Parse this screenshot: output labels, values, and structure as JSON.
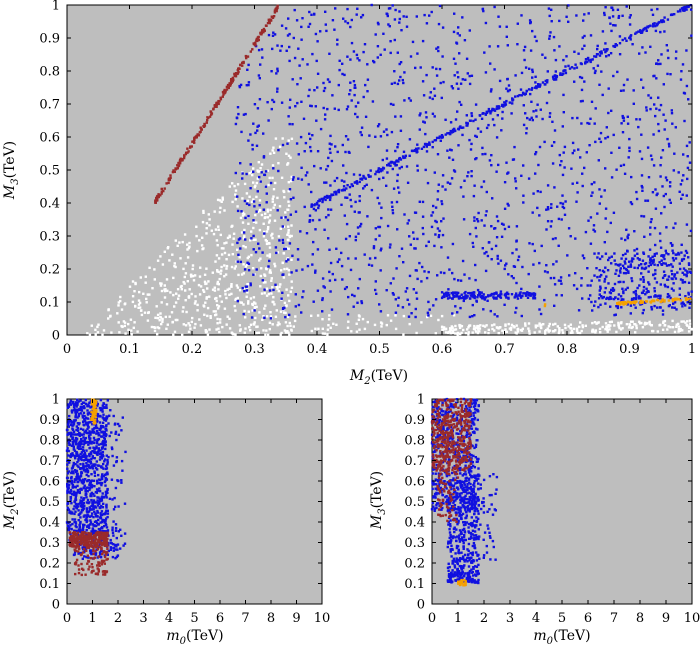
{
  "colors": {
    "background": "#bebebe",
    "white_points": "#ffffff",
    "blue_points": "#1010e0",
    "red_points": "#9a2a2a",
    "orange_points": "#f5a000"
  },
  "chart_data": [
    {
      "type": "scatter",
      "title": "",
      "xlabel": "M2(TeV)",
      "ylabel": "M3(TeV)",
      "xlabel_parts": [
        "M",
        "2",
        "(TeV)"
      ],
      "ylabel_parts": [
        "M",
        "3",
        "(TeV)"
      ],
      "xlim": [
        0,
        1
      ],
      "ylim": [
        0,
        1
      ],
      "xticks": [
        "0",
        "0.1",
        "0.2",
        "0.3",
        "0.4",
        "0.5",
        "0.6",
        "0.7",
        "0.8",
        "0.9",
        "1"
      ],
      "yticks": [
        "0",
        "0.1",
        "0.2",
        "0.3",
        "0.4",
        "0.5",
        "0.6",
        "0.7",
        "0.8",
        "0.9",
        "1"
      ],
      "series": [
        {
          "name": "white",
          "color": "#ffffff",
          "regions": [
            {
              "shape": "tri",
              "x0": 0.02,
              "x1": 0.36,
              "y0": 0.0,
              "y1": 0.6,
              "n": 650
            },
            {
              "shape": "box",
              "x0": 0.35,
              "x1": 0.62,
              "y0": 0.0,
              "y1": 0.06,
              "n": 60
            },
            {
              "shape": "band",
              "x0": 0.6,
              "x1": 1.0,
              "yA": 0.0,
              "yB": 0.01,
              "yC": 0.03,
              "yD": 0.045,
              "n": 260
            }
          ]
        },
        {
          "name": "blue",
          "color": "#1010e0",
          "regions": [
            {
              "shape": "upper",
              "x0": 0.27,
              "x1": 1.0,
              "y1": 1.0,
              "slope": 2.6,
              "yoff": 0.3,
              "ymin": 0.05,
              "n": 1500
            },
            {
              "shape": "line",
              "x0": 0.39,
              "x1": 1.0,
              "ya": 0.39,
              "yb": 1.0,
              "spread": 0.006,
              "n": 340
            },
            {
              "shape": "box",
              "x0": 0.6,
              "x1": 0.75,
              "y0": 0.11,
              "y1": 0.13,
              "n": 150
            },
            {
              "shape": "box",
              "x0": 0.85,
              "x1": 1.0,
              "y0": 0.08,
              "y1": 0.25,
              "n": 260
            }
          ]
        },
        {
          "name": "red",
          "color": "#9a2a2a",
          "regions": [
            {
              "shape": "line",
              "x0": 0.14,
              "x1": 0.34,
              "ya": 0.4,
              "yb": 1.0,
              "spread": 0.008,
              "n": 220
            }
          ]
        },
        {
          "name": "orange",
          "color": "#f5a000",
          "regions": [
            {
              "shape": "line",
              "x0": 0.88,
              "x1": 1.0,
              "ya": 0.095,
              "yb": 0.11,
              "spread": 0.004,
              "n": 70
            },
            {
              "shape": "box",
              "x0": 0.76,
              "x1": 0.77,
              "y0": 0.085,
              "y1": 0.095,
              "n": 2
            }
          ]
        }
      ]
    },
    {
      "type": "scatter",
      "title": "",
      "xlabel": "m0(TeV)",
      "ylabel": "M2(TeV)",
      "xlabel_parts": [
        "m",
        "0",
        "(TeV)"
      ],
      "ylabel_parts": [
        "M",
        "2",
        "(TeV)"
      ],
      "xlim": [
        0,
        10
      ],
      "ylim": [
        0,
        1
      ],
      "xticks": [
        "0",
        "1",
        "2",
        "3",
        "4",
        "5",
        "6",
        "7",
        "8",
        "9",
        "10"
      ],
      "yticks": [
        "0",
        "0.1",
        "0.2",
        "0.3",
        "0.4",
        "0.5",
        "0.6",
        "0.7",
        "0.8",
        "0.9",
        "1"
      ],
      "series": [
        {
          "name": "blue",
          "color": "#1010e0",
          "regions": [
            {
              "shape": "box",
              "x0": 0.0,
              "x1": 1.6,
              "y0": 0.35,
              "y1": 1.0,
              "n": 900
            },
            {
              "shape": "box",
              "x0": 1.0,
              "x1": 2.3,
              "y0": 0.25,
              "y1": 0.95,
              "n": 110
            },
            {
              "shape": "box",
              "x0": 0.1,
              "x1": 2.0,
              "y0": 0.22,
              "y1": 0.36,
              "n": 120
            }
          ]
        },
        {
          "name": "red",
          "color": "#9a2a2a",
          "regions": [
            {
              "shape": "box",
              "x0": 0.1,
              "x1": 1.6,
              "y0": 0.28,
              "y1": 0.35,
              "n": 260
            },
            {
              "shape": "box",
              "x0": 0.3,
              "x1": 1.6,
              "y0": 0.14,
              "y1": 0.28,
              "n": 90
            }
          ]
        },
        {
          "name": "orange",
          "color": "#f5a000",
          "regions": [
            {
              "shape": "box",
              "x0": 0.95,
              "x1": 1.15,
              "y0": 0.88,
              "y1": 1.0,
              "n": 60
            }
          ]
        }
      ]
    },
    {
      "type": "scatter",
      "title": "",
      "xlabel": "m0(TeV)",
      "ylabel": "M3(TeV)",
      "xlabel_parts": [
        "m",
        "0",
        "(TeV)"
      ],
      "ylabel_parts": [
        "M",
        "3",
        "(TeV)"
      ],
      "xlim": [
        0,
        10
      ],
      "ylim": [
        0,
        1
      ],
      "xticks": [
        "0",
        "1",
        "2",
        "3",
        "4",
        "5",
        "6",
        "7",
        "8",
        "9",
        "10"
      ],
      "yticks": [
        "0",
        "0.1",
        "0.2",
        "0.3",
        "0.4",
        "0.5",
        "0.6",
        "0.7",
        "0.8",
        "0.9",
        "1"
      ],
      "series": [
        {
          "name": "blue",
          "color": "#1010e0",
          "regions": [
            {
              "shape": "box",
              "x0": 0.0,
              "x1": 1.8,
              "y0": 0.45,
              "y1": 1.0,
              "n": 600
            },
            {
              "shape": "box",
              "x0": 0.6,
              "x1": 1.8,
              "y0": 0.1,
              "y1": 0.6,
              "n": 320
            },
            {
              "shape": "box",
              "x0": 1.0,
              "x1": 2.5,
              "y0": 0.2,
              "y1": 0.65,
              "n": 90
            },
            {
              "shape": "box",
              "x0": 0.6,
              "x1": 1.8,
              "y0": 0.1,
              "y1": 0.16,
              "n": 80
            }
          ]
        },
        {
          "name": "red",
          "color": "#9a2a2a",
          "regions": [
            {
              "shape": "box",
              "x0": 0.0,
              "x1": 1.5,
              "y0": 0.65,
              "y1": 1.0,
              "n": 420
            },
            {
              "shape": "box",
              "x0": 0.2,
              "x1": 1.0,
              "y0": 0.4,
              "y1": 0.66,
              "n": 70
            }
          ]
        },
        {
          "name": "orange",
          "color": "#f5a000",
          "regions": [
            {
              "shape": "box",
              "x0": 1.0,
              "x1": 1.3,
              "y0": 0.09,
              "y1": 0.12,
              "n": 25
            }
          ]
        }
      ]
    }
  ]
}
